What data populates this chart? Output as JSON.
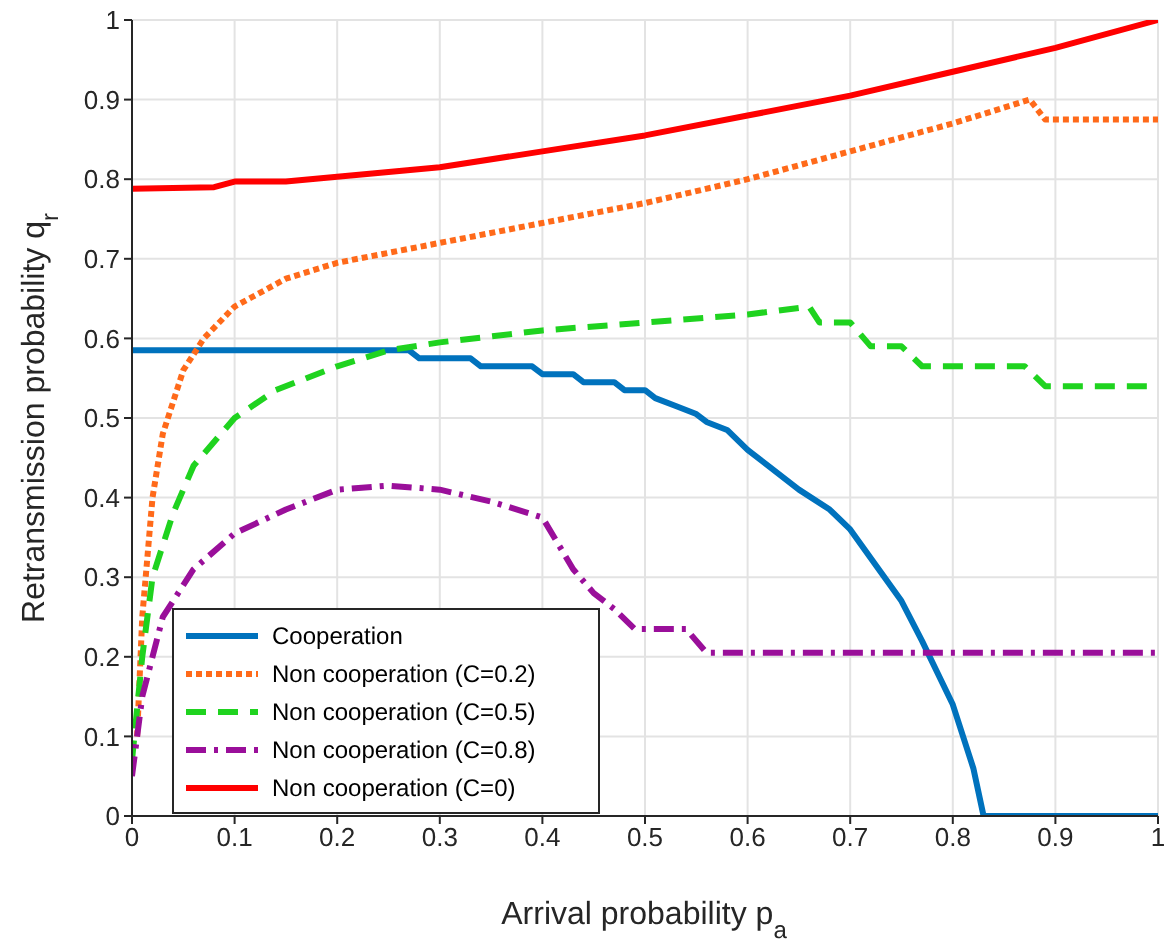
{
  "chart_data": {
    "type": "line",
    "xlabel": "Arrival probability p$_{a}$",
    "ylabel": "Retransmission probability q$_{r}$",
    "xlim": [
      0,
      1
    ],
    "ylim": [
      0,
      1
    ],
    "xticks": [
      0,
      0.1,
      0.2,
      0.3,
      0.4,
      0.5,
      0.6,
      0.7,
      0.8,
      0.9,
      1
    ],
    "yticks": [
      0,
      0.1,
      0.2,
      0.3,
      0.4,
      0.5,
      0.6,
      0.7,
      0.8,
      0.9,
      1
    ],
    "grid": true,
    "legend": "bottom left",
    "marker": "none",
    "series": [
      {
        "name": "Cooperation",
        "color": "#0072bd",
        "line_style": "solid",
        "x": [
          0,
          0.27,
          0.28,
          0.33,
          0.34,
          0.39,
          0.4,
          0.43,
          0.44,
          0.47,
          0.48,
          0.5,
          0.51,
          0.53,
          0.55,
          0.56,
          0.58,
          0.6,
          0.65,
          0.68,
          0.7,
          0.75,
          0.77,
          0.8,
          0.82,
          0.83,
          1
        ],
        "values": [
          0.585,
          0.585,
          0.575,
          0.575,
          0.565,
          0.565,
          0.555,
          0.555,
          0.545,
          0.545,
          0.535,
          0.535,
          0.525,
          0.515,
          0.505,
          0.495,
          0.485,
          0.46,
          0.41,
          0.385,
          0.36,
          0.27,
          0.22,
          0.14,
          0.06,
          0,
          0
        ]
      },
      {
        "name": "Non cooperation (C=0.2)",
        "color": "#ff6a1a",
        "line_style": "dotted",
        "x": [
          0.005,
          0.01,
          0.02,
          0.03,
          0.05,
          0.07,
          0.1,
          0.15,
          0.2,
          0.3,
          0.4,
          0.5,
          0.6,
          0.7,
          0.8,
          0.875,
          0.89,
          1
        ],
        "values": [
          0.1,
          0.25,
          0.4,
          0.48,
          0.56,
          0.6,
          0.64,
          0.675,
          0.695,
          0.72,
          0.745,
          0.77,
          0.8,
          0.835,
          0.87,
          0.9,
          0.875,
          0.875
        ]
      },
      {
        "name": "Non cooperation (C=0.5)",
        "color": "#1fd31f",
        "line_style": "dashed",
        "x": [
          0,
          0.01,
          0.02,
          0.04,
          0.06,
          0.1,
          0.14,
          0.2,
          0.25,
          0.3,
          0.4,
          0.5,
          0.6,
          0.66,
          0.67,
          0.7,
          0.72,
          0.75,
          0.77,
          0.87,
          0.89,
          1
        ],
        "values": [
          0.07,
          0.2,
          0.3,
          0.38,
          0.44,
          0.5,
          0.535,
          0.565,
          0.585,
          0.595,
          0.61,
          0.62,
          0.63,
          0.64,
          0.62,
          0.62,
          0.59,
          0.59,
          0.565,
          0.565,
          0.54,
          0.54
        ]
      },
      {
        "name": "Non cooperation (C=0.8)",
        "color": "#9a0f9a",
        "line_style": "dashdot",
        "x": [
          0,
          0.01,
          0.03,
          0.06,
          0.1,
          0.15,
          0.2,
          0.25,
          0.3,
          0.35,
          0.4,
          0.43,
          0.45,
          0.47,
          0.49,
          0.54,
          0.56,
          1
        ],
        "values": [
          0.05,
          0.15,
          0.25,
          0.31,
          0.355,
          0.385,
          0.41,
          0.415,
          0.41,
          0.395,
          0.375,
          0.31,
          0.28,
          0.26,
          0.235,
          0.235,
          0.205,
          0.205
        ]
      },
      {
        "name": "Non cooperation (C=0)",
        "color": "#ff0000",
        "line_style": "solid",
        "x": [
          0,
          0.08,
          0.1,
          0.15,
          0.2,
          0.3,
          0.4,
          0.5,
          0.6,
          0.7,
          0.8,
          0.9,
          1
        ],
        "values": [
          0.788,
          0.79,
          0.797,
          0.797,
          0.803,
          0.815,
          0.835,
          0.855,
          0.88,
          0.905,
          0.935,
          0.965,
          1
        ]
      }
    ]
  }
}
